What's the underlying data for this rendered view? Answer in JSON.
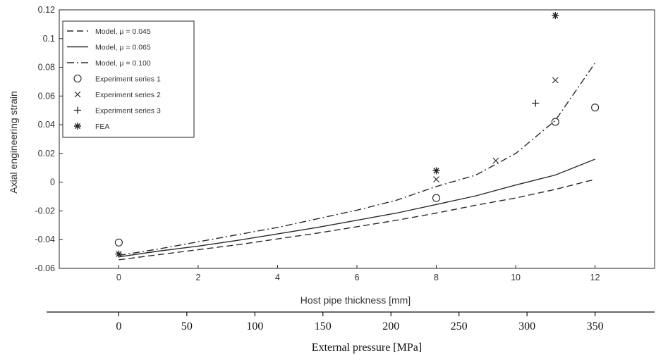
{
  "chart_data": {
    "type": "line",
    "title": "",
    "xlabel": "Host pipe thickness [mm]",
    "ylabel": "Axial engineering strain",
    "xlim": [
      -1.5,
      13.5
    ],
    "ylim": [
      -0.06,
      0.12
    ],
    "x_ticks": [
      "0",
      "2",
      "4",
      "6",
      "8",
      "10",
      "12"
    ],
    "y_ticks": [
      "-0.06",
      "-0.04",
      "-0.02",
      "0",
      "0.02",
      "0.04",
      "0.06",
      "0.08",
      "0.1",
      "0.12"
    ],
    "secondary_xlabel": "External pressure [MPa]",
    "secondary_x_ticks": [
      "0",
      "50",
      "100",
      "150",
      "200",
      "250",
      "300",
      "350"
    ],
    "grid": false,
    "legend_position": "top-left",
    "series": [
      {
        "name": "Model, μ = 0.045",
        "style": "dashed",
        "x": [
          0,
          1,
          2,
          3,
          4,
          5,
          6,
          7,
          8,
          9,
          10,
          11,
          12
        ],
        "y": [
          -0.054,
          -0.0505,
          -0.047,
          -0.0435,
          -0.0395,
          -0.0355,
          -0.031,
          -0.0265,
          -0.0215,
          -0.016,
          -0.011,
          -0.005,
          0.002
        ]
      },
      {
        "name": "Model, μ = 0.065",
        "style": "solid",
        "x": [
          0,
          1,
          2,
          3,
          4,
          5,
          6,
          7,
          8,
          9,
          10,
          11,
          12
        ],
        "y": [
          -0.052,
          -0.048,
          -0.0445,
          -0.0405,
          -0.036,
          -0.0315,
          -0.0265,
          -0.0215,
          -0.0155,
          -0.0095,
          -0.002,
          0.005,
          0.016
        ]
      },
      {
        "name": "Model, μ = 0.100",
        "style": "dash-dot",
        "x": [
          0,
          1,
          2,
          3,
          4,
          5,
          6,
          7,
          8,
          9,
          10,
          11,
          12
        ],
        "y": [
          -0.051,
          -0.0465,
          -0.0415,
          -0.0365,
          -0.0315,
          -0.0255,
          -0.0195,
          -0.0125,
          -0.003,
          0.005,
          0.02,
          0.043,
          0.083
        ]
      },
      {
        "name": "Experiment series 1",
        "style": "marker-circle",
        "x": [
          0,
          8,
          11,
          12
        ],
        "y": [
          -0.042,
          -0.011,
          0.042,
          0.052
        ]
      },
      {
        "name": "Experiment series 2",
        "style": "marker-x",
        "x": [
          8,
          9.5,
          11
        ],
        "y": [
          0.002,
          0.015,
          0.071
        ]
      },
      {
        "name": "Experiment series 3",
        "style": "marker-plus",
        "x": [
          10.5
        ],
        "y": [
          0.055
        ]
      },
      {
        "name": "FEA",
        "style": "marker-star",
        "x": [
          0,
          8,
          11
        ],
        "y": [
          -0.05,
          0.008,
          0.116
        ]
      }
    ]
  }
}
